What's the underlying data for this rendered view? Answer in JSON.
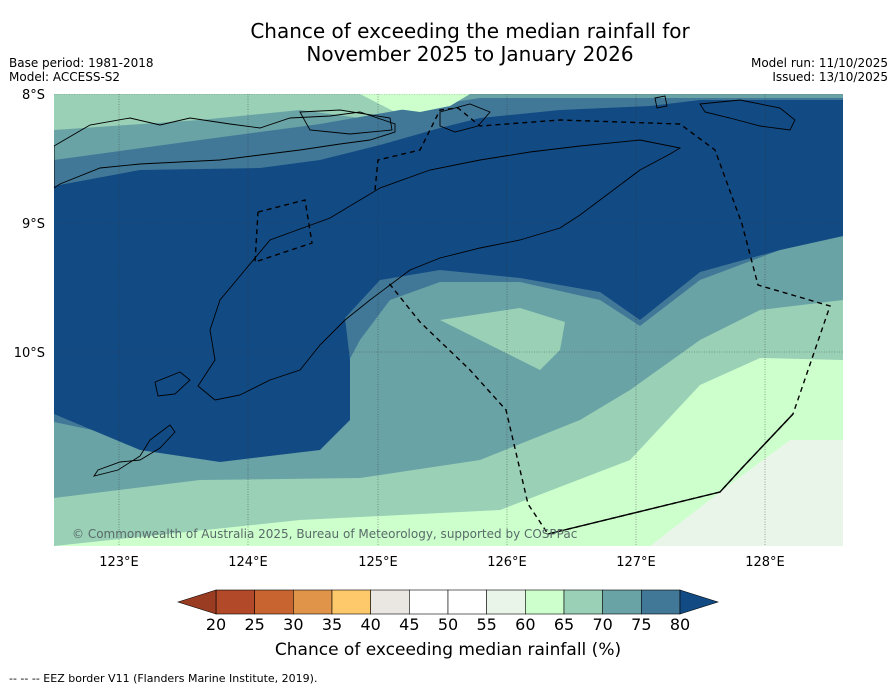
{
  "title_line1": "Chance of exceeding the median rainfall for",
  "title_line2": "November 2025 to January 2026",
  "meta_left": [
    "Base period: 1981-2018",
    "Model: ACCESS-S2"
  ],
  "meta_right": [
    "Model run: 11/10/2025",
    "Issued: 13/10/2025"
  ],
  "lat_labels": [
    "8°S",
    "9°S",
    "10°S"
  ],
  "lon_labels": [
    "123°E",
    "124°E",
    "125°E",
    "126°E",
    "127°E",
    "128°E"
  ],
  "copyright": "© Commonwealth of Australia 2025, Bureau of Meteorology, supported by COSPPac",
  "colorbar": {
    "title": "Chance of exceeding median rainfall (%)",
    "ticks": [
      "20",
      "25",
      "30",
      "35",
      "40",
      "45",
      "50",
      "55",
      "60",
      "65",
      "70",
      "75",
      "80"
    ],
    "colors": [
      "#b24a2a",
      "#c8642f",
      "#df9449",
      "#fdc96b",
      "#eae6e1",
      "#ffffff",
      "#ffffff",
      "#e9f5e8",
      "#ccffcc",
      "#99d0b6",
      "#6aa3a5",
      "#417898",
      "#124a84"
    ]
  },
  "footer": "--  --  -- EEZ border V11 (Flanders Marine Institute, 2019)."
}
